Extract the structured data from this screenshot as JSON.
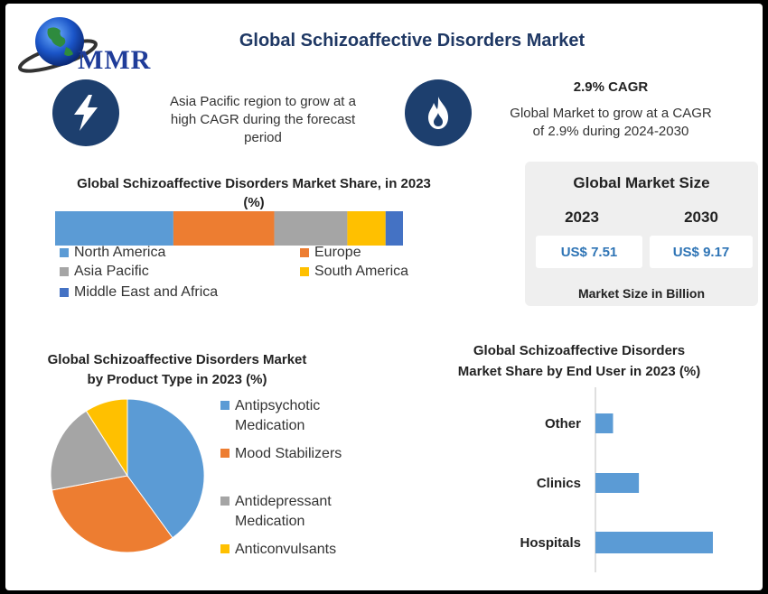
{
  "brand": {
    "logo_text": "MMR"
  },
  "page": {
    "title": "Global Schizoaffective Disorders Market"
  },
  "highlights": [
    {
      "icon": "lightning-icon",
      "text_lines": [
        "Asia Pacific region to grow at a",
        "high CAGR during the forecast",
        "period"
      ]
    },
    {
      "icon": "flame-icon",
      "heading": "2.9% CAGR",
      "text_lines": [
        "Global Market to grow at a CAGR",
        "of 2.9% during 2024-2030"
      ]
    }
  ],
  "market_size": {
    "title": "Global Market Size",
    "years": [
      "2023",
      "2030"
    ],
    "values": [
      "US$ 7.51",
      "US$ 9.17"
    ],
    "footer": "Market Size in Billion"
  },
  "colors": {
    "blue": "#5b9bd5",
    "orange": "#ed7d31",
    "gray": "#a5a5a5",
    "yellow": "#ffc000",
    "darkblue": "#4472c4",
    "navy": "#1d3f6e",
    "title_blue": "#1f3864"
  },
  "chart_data": [
    {
      "type": "bar",
      "orientation": "stacked-horizontal",
      "title_lines": [
        "Global Schizoaffective Disorders  Market Share, in 2023",
        "(%)"
      ],
      "series": [
        {
          "name": "North America",
          "values": [
            34
          ]
        },
        {
          "name": "Europe",
          "values": [
            29
          ]
        },
        {
          "name": "Asia Pacific",
          "values": [
            21
          ]
        },
        {
          "name": "South America",
          "values": [
            11
          ]
        },
        {
          "name": "Middle East and Africa",
          "values": [
            5
          ]
        }
      ],
      "legend": "bottom"
    },
    {
      "type": "pie",
      "title_lines": [
        "Global Schizoaffective Disorders  Market",
        "by Product Type in 2023 (%)"
      ],
      "labels": [
        "Antipsychotic Medication",
        "Mood Stabilizers",
        "Antidepressant Medication",
        "Anticonvulsants"
      ],
      "legend_lines": [
        [
          "Antipsychotic",
          "Medication"
        ],
        [
          "Mood Stabilizers"
        ],
        [
          "Antidepressant",
          "Medication"
        ],
        [
          "Anticonvulsants"
        ]
      ],
      "values": [
        40,
        32,
        19,
        9
      ],
      "legend": "right"
    },
    {
      "type": "bar",
      "orientation": "horizontal",
      "title_lines": [
        "Global Schizoaffective Disorders",
        "Market Share by End User in 2023 (%)"
      ],
      "categories": [
        "Other",
        "Clinics",
        "Hospitals"
      ],
      "values": [
        15,
        37,
        100
      ],
      "xlim": [
        0,
        100
      ]
    }
  ]
}
